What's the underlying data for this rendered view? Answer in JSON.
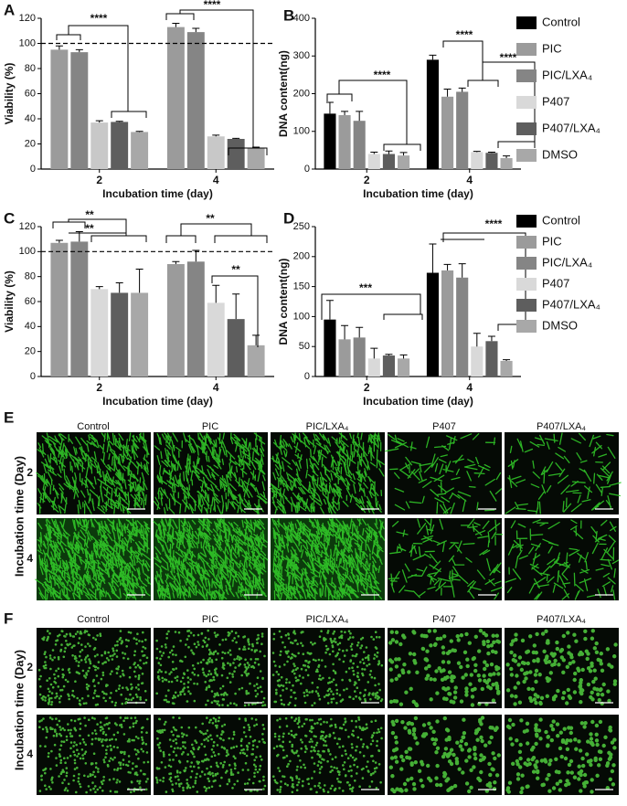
{
  "chart_data": [
    {
      "type": "bar",
      "panel_label": "A",
      "y_label": "Viability (%)",
      "x_label": "Incubation time (day)",
      "categories": [
        "2",
        "4"
      ],
      "ylim": [
        0,
        120
      ],
      "yticks": [
        0,
        20,
        40,
        60,
        80,
        100,
        120
      ],
      "reference_line": 100,
      "annotations": [
        "****",
        "****"
      ],
      "series": [
        {
          "color": "#9b9b9b",
          "values": [
            95,
            113
          ],
          "errors": [
            3,
            3
          ]
        },
        {
          "color": "#858585",
          "values": [
            93,
            109
          ],
          "errors": [
            2,
            3
          ]
        },
        {
          "color": "#c8c8c8",
          "values": [
            37,
            26
          ],
          "errors": [
            1.5,
            1
          ]
        },
        {
          "color": "#5e5e5e",
          "values": [
            37.5,
            24
          ],
          "errors": [
            0.5,
            0.5
          ]
        },
        {
          "color": "#a8a8a8",
          "values": [
            29.5,
            17
          ],
          "errors": [
            0.5,
            0.5
          ]
        }
      ]
    },
    {
      "type": "bar",
      "panel_label": "B",
      "y_label": "DNA content(ng)",
      "x_label": "Incubation time (day)",
      "categories": [
        "2",
        "4"
      ],
      "ylim": [
        0,
        400
      ],
      "yticks": [
        0,
        100,
        200,
        300,
        400
      ],
      "annotations": [
        "****",
        "****",
        "****"
      ],
      "series": [
        {
          "name": "Control",
          "color": "#000000",
          "values": [
            147,
            290
          ],
          "errors": [
            30,
            12
          ]
        },
        {
          "name": "PIC",
          "color": "#9b9b9b",
          "values": [
            143,
            192
          ],
          "errors": [
            10,
            20
          ]
        },
        {
          "name": "PIC/LXA₄",
          "color": "#858585",
          "values": [
            128,
            205
          ],
          "errors": [
            25,
            10
          ]
        },
        {
          "name": "P407",
          "color": "#d9d9d9",
          "values": [
            40,
            45
          ],
          "errors": [
            5,
            2
          ]
        },
        {
          "name": "P407/LXA₄",
          "color": "#5e5e5e",
          "values": [
            40,
            43
          ],
          "errors": [
            8,
            2
          ]
        },
        {
          "name": "DMSO",
          "color": "#a8a8a8",
          "values": [
            36,
            29
          ],
          "errors": [
            8,
            6
          ]
        }
      ]
    },
    {
      "type": "bar",
      "panel_label": "C",
      "y_label": "Viability (%)",
      "x_label": "Incubation time (day)",
      "categories": [
        "2",
        "4"
      ],
      "ylim": [
        0,
        120
      ],
      "yticks": [
        0,
        20,
        40,
        60,
        80,
        100,
        120
      ],
      "reference_line": 100,
      "annotations": [
        "**",
        "**",
        "**",
        "**"
      ],
      "series": [
        {
          "color": "#9b9b9b",
          "values": [
            107,
            90
          ],
          "errors": [
            2,
            2
          ]
        },
        {
          "color": "#858585",
          "values": [
            108,
            92
          ],
          "errors": [
            8,
            9
          ]
        },
        {
          "color": "#d9d9d9",
          "values": [
            70,
            59
          ],
          "errors": [
            2,
            14
          ]
        },
        {
          "color": "#5e5e5e",
          "values": [
            67,
            46
          ],
          "errors": [
            8,
            20
          ]
        },
        {
          "color": "#a8a8a8",
          "values": [
            67,
            25
          ],
          "errors": [
            19,
            8
          ]
        }
      ]
    },
    {
      "type": "bar",
      "panel_label": "D",
      "y_label": "DNA content(ng)",
      "x_label": "Incubation time (day)",
      "categories": [
        "2",
        "4"
      ],
      "ylim": [
        0,
        250
      ],
      "yticks": [
        0,
        50,
        100,
        150,
        200,
        250
      ],
      "annotations": [
        "***",
        "****"
      ],
      "series": [
        {
          "name": "Control",
          "color": "#000000",
          "values": [
            95,
            173
          ],
          "errors": [
            32,
            48
          ]
        },
        {
          "name": "PIC",
          "color": "#9b9b9b",
          "values": [
            62,
            177
          ],
          "errors": [
            23,
            10
          ]
        },
        {
          "name": "PIC/LXA₄",
          "color": "#858585",
          "values": [
            65,
            165
          ],
          "errors": [
            17,
            23
          ]
        },
        {
          "name": "P407",
          "color": "#d9d9d9",
          "values": [
            30,
            50
          ],
          "errors": [
            17,
            22
          ]
        },
        {
          "name": "P407/LXA₄",
          "color": "#5e5e5e",
          "values": [
            35,
            59
          ],
          "errors": [
            2,
            8
          ]
        },
        {
          "name": "DMSO",
          "color": "#a8a8a8",
          "values": [
            30,
            26
          ],
          "errors": [
            6,
            2
          ]
        }
      ]
    }
  ],
  "panels": [
    {
      "label": "E",
      "columns": [
        "Control",
        "PIC",
        "PIC/LXA₄",
        "P407",
        "P407/LXA₄"
      ],
      "rows": [
        "2",
        "4"
      ],
      "y_label": "Incubation time (Day)"
    },
    {
      "label": "F",
      "columns": [
        "Control",
        "PIC",
        "PIC/LXA₄",
        "P407",
        "P407/LXA₄"
      ],
      "rows": [
        "2",
        "4"
      ],
      "y_label": "Incubation time (Day)"
    }
  ]
}
